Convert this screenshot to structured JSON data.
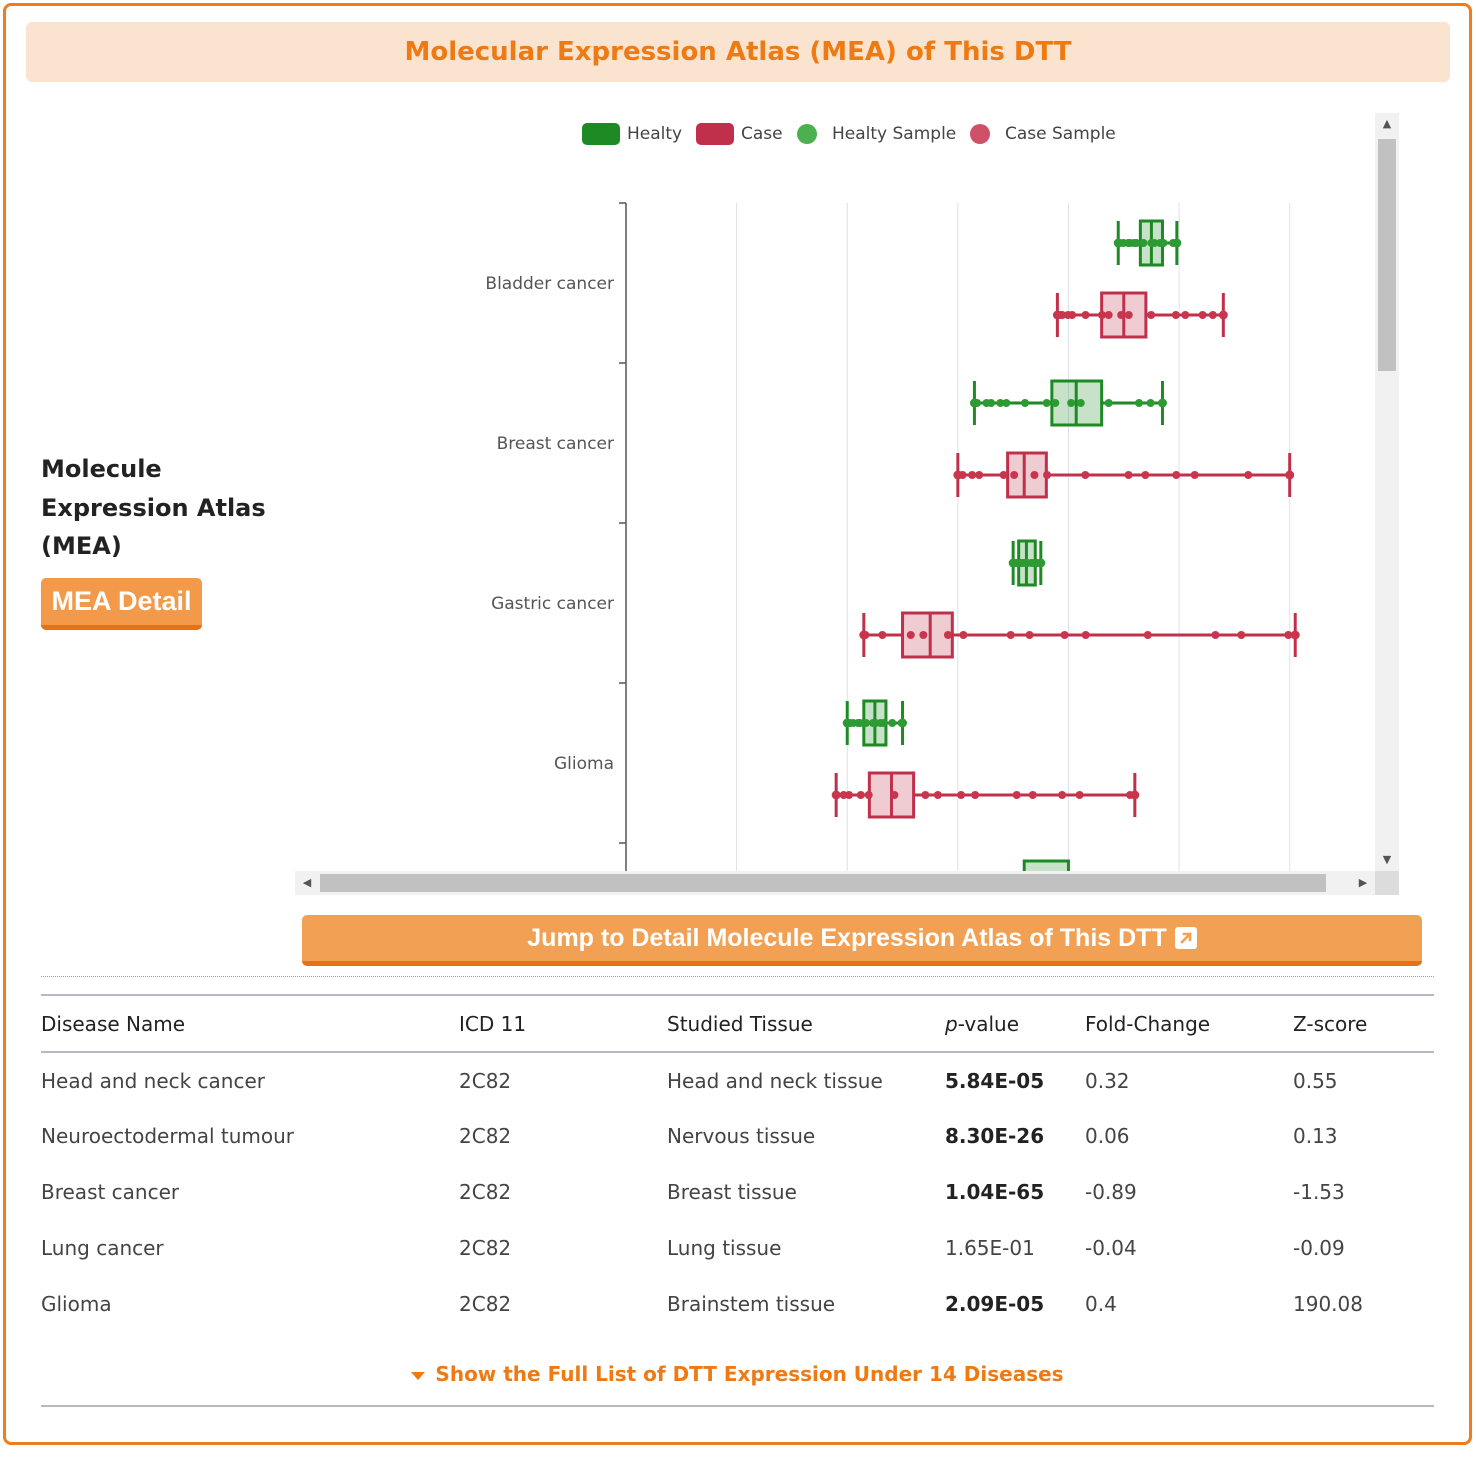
{
  "header": {
    "title": "Molecular Expression Atlas (MEA) of This DTT"
  },
  "sidebar": {
    "title": "Molecule Expression Atlas (MEA)",
    "button_label": "MEA Detail"
  },
  "legend": {
    "healthy": "Healty",
    "case": "Case",
    "healthy_sample": "Healty Sample",
    "case_sample": "Case Sample"
  },
  "colors": {
    "accent": "#ee7a14",
    "healthy": "#1e8a24",
    "case": "#c0304a"
  },
  "chart_data": {
    "type": "boxplot",
    "orientation": "horizontal",
    "categories": [
      "Bladder cancer",
      "Breast cancer",
      "Gastric cancer",
      "Glioma"
    ],
    "series": [
      {
        "name": "Healty",
        "boxes": [
          {
            "min": 4.45,
            "q1": 4.65,
            "median": 4.75,
            "q3": 4.85,
            "max": 4.98
          },
          {
            "min": 3.15,
            "q1": 3.85,
            "median": 4.07,
            "q3": 4.3,
            "max": 4.85
          },
          {
            "min": 3.5,
            "q1": 3.55,
            "median": 3.62,
            "q3": 3.7,
            "max": 3.75
          },
          {
            "min": 2.0,
            "q1": 2.15,
            "median": 2.25,
            "q3": 2.35,
            "max": 2.5
          }
        ]
      },
      {
        "name": "Case",
        "boxes": [
          {
            "min": 3.9,
            "q1": 4.3,
            "median": 4.5,
            "q3": 4.7,
            "max": 5.4
          },
          {
            "min": 3.0,
            "q1": 3.45,
            "median": 3.6,
            "q3": 3.8,
            "max": 6.0
          },
          {
            "min": 2.15,
            "q1": 2.5,
            "median": 2.75,
            "q3": 2.95,
            "max": 6.05
          },
          {
            "min": 1.9,
            "q1": 2.2,
            "median": 2.4,
            "q3": 2.6,
            "max": 4.6
          }
        ]
      }
    ],
    "xlim": [
      0,
      6.5
    ]
  },
  "jump_button": {
    "label": "Jump to Detail Molecule Expression Atlas of This DTT"
  },
  "table": {
    "headers": {
      "disease": "Disease Name",
      "icd": "ICD 11",
      "tissue": "Studied Tissue",
      "p_prefix": "p",
      "p_suffix": "-value",
      "fold": "Fold-Change",
      "z": "Z-score"
    },
    "rows": [
      {
        "disease": "Head and neck cancer",
        "icd": "2C82",
        "tissue": "Head and neck tissue",
        "p": "5.84E-05",
        "fold": "0.32",
        "z": "0.55"
      },
      {
        "disease": "Neuroectodermal tumour",
        "icd": "2C82",
        "tissue": "Nervous tissue",
        "p": "8.30E-26",
        "fold": "0.06",
        "z": "0.13"
      },
      {
        "disease": "Breast cancer",
        "icd": "2C82",
        "tissue": "Breast tissue",
        "p": "1.04E-65",
        "fold": "-0.89",
        "z": "-1.53"
      },
      {
        "disease": "Lung cancer",
        "icd": "2C82",
        "tissue": "Lung tissue",
        "p": "1.65E-01",
        "fold": "-0.04",
        "z": "-0.09"
      },
      {
        "disease": "Glioma",
        "icd": "2C82",
        "tissue": "Brainstem tissue",
        "p": "2.09E-05",
        "fold": "0.4",
        "z": "190.08"
      }
    ]
  },
  "show_full": {
    "label": "Show the Full List of DTT Expression Under 14 Diseases"
  }
}
